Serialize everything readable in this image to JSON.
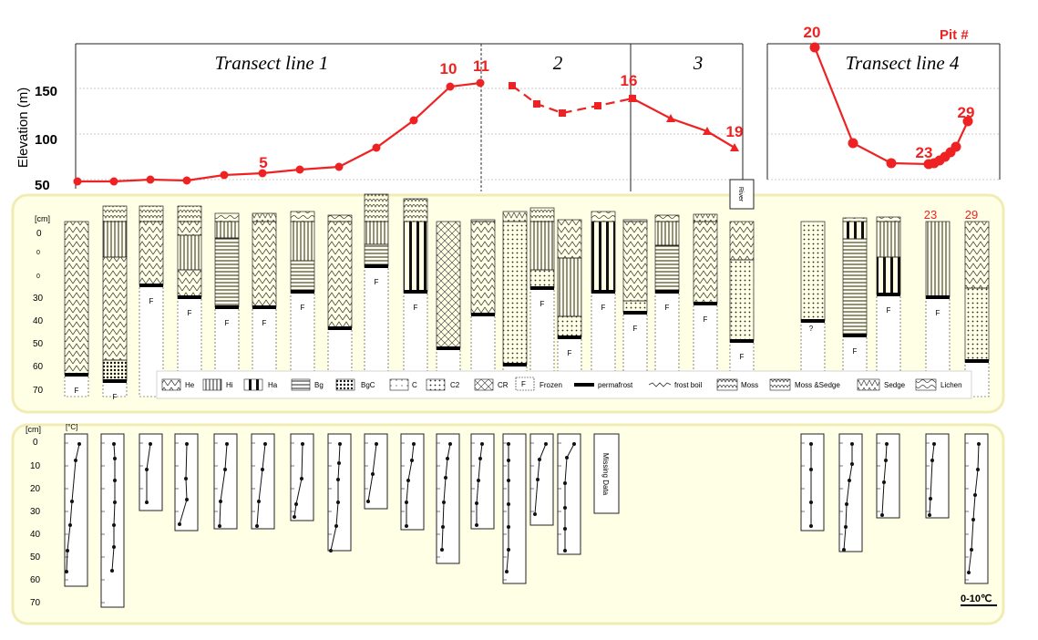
{
  "top_chart": {
    "ylabel": "Elevation (m)",
    "yticks": [
      "50",
      "100",
      "150"
    ],
    "transect_labels": [
      "Transect line 1",
      "2",
      "3",
      "Transect line 4"
    ],
    "pit_label": "Pit #",
    "line_color": "#ee2222",
    "pit_markers": [
      "5",
      "10",
      "11",
      "16",
      "19",
      "20",
      "23",
      "29"
    ],
    "line1": [
      48,
      48,
      50,
      49,
      55,
      57,
      61,
      64,
      85,
      115,
      152,
      156
    ],
    "line2": [
      153,
      133,
      123,
      131,
      139
    ],
    "line3": [
      139,
      117,
      103,
      85
    ],
    "line4": [
      195,
      90,
      68,
      67,
      68,
      71,
      75,
      80,
      86,
      114
    ]
  },
  "profiles": {
    "depth_unit": "[cm]",
    "depth_ticks": [
      "0",
      "30",
      "40",
      "50",
      "60",
      "70"
    ],
    "depth_small_ticks": [
      "0",
      "0"
    ],
    "frozen_mark": "F",
    "unknown_mark": "?",
    "river_label": "River",
    "pit_labels": [
      "23",
      "29"
    ],
    "legend": [
      "He",
      "Hi",
      "Ha",
      "Bg",
      "BgC",
      "C",
      "C2",
      "CR",
      "F",
      "Frozen",
      "permafrost",
      "frost boil",
      "Moss",
      "Moss &Sedge",
      "Sedge",
      "Lichen"
    ]
  },
  "temperature": {
    "depth_unit": "[cm]",
    "temp_unit": "[°C]",
    "depth_ticks": [
      "0",
      "10",
      "20",
      "30",
      "40",
      "50",
      "60",
      "70"
    ],
    "missing_label": "Missing Data",
    "scale_label": "0-10℃"
  }
}
